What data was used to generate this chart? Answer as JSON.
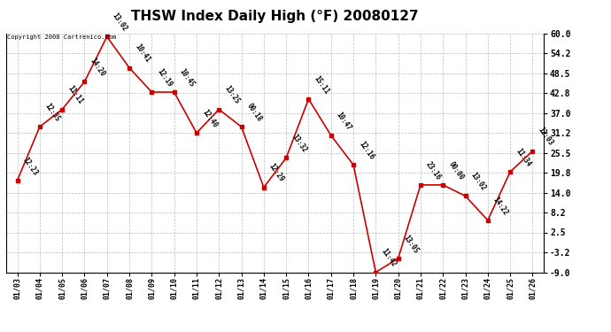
{
  "title": "THSW Index Daily High (°F) 20080127",
  "x_labels": [
    "01/03",
    "01/04",
    "01/05",
    "01/06",
    "01/07",
    "01/08",
    "01/09",
    "01/10",
    "01/11",
    "01/12",
    "01/13",
    "01/14",
    "01/15",
    "01/16",
    "01/17",
    "01/18",
    "01/19",
    "01/20",
    "01/21",
    "01/22",
    "01/23",
    "01/24",
    "01/25",
    "01/26"
  ],
  "y_values": [
    17.5,
    33.0,
    38.0,
    46.0,
    59.0,
    50.0,
    43.0,
    43.0,
    31.2,
    38.0,
    33.0,
    15.5,
    24.0,
    41.0,
    30.5,
    22.0,
    -9.0,
    -5.0,
    16.2,
    16.2,
    13.0,
    6.0,
    20.0,
    26.0
  ],
  "annotations": [
    "12:23",
    "12:35",
    "11:11",
    "14:20",
    "13:02",
    "10:41",
    "12:19",
    "10:45",
    "12:40",
    "13:25",
    "00:18",
    "12:29",
    "13:32",
    "15:11",
    "10:47",
    "12:16",
    "11:42",
    "13:05",
    "23:16",
    "00:00",
    "13:02",
    "14:22",
    "11:34",
    "12:03"
  ],
  "line_color": "#cc0000",
  "marker_color": "#cc0000",
  "bg_color": "#ffffff",
  "grid_color": "#bbbbbb",
  "ylim": [
    -9.0,
    60.0
  ],
  "yticks": [
    -9.0,
    -3.2,
    2.5,
    8.2,
    14.0,
    19.8,
    25.5,
    31.2,
    37.0,
    42.8,
    48.5,
    54.2,
    60.0
  ],
  "title_fontsize": 11,
  "annotation_fontsize": 5.5,
  "copyright_text": "Copyright 2008 Cartrenico.com"
}
